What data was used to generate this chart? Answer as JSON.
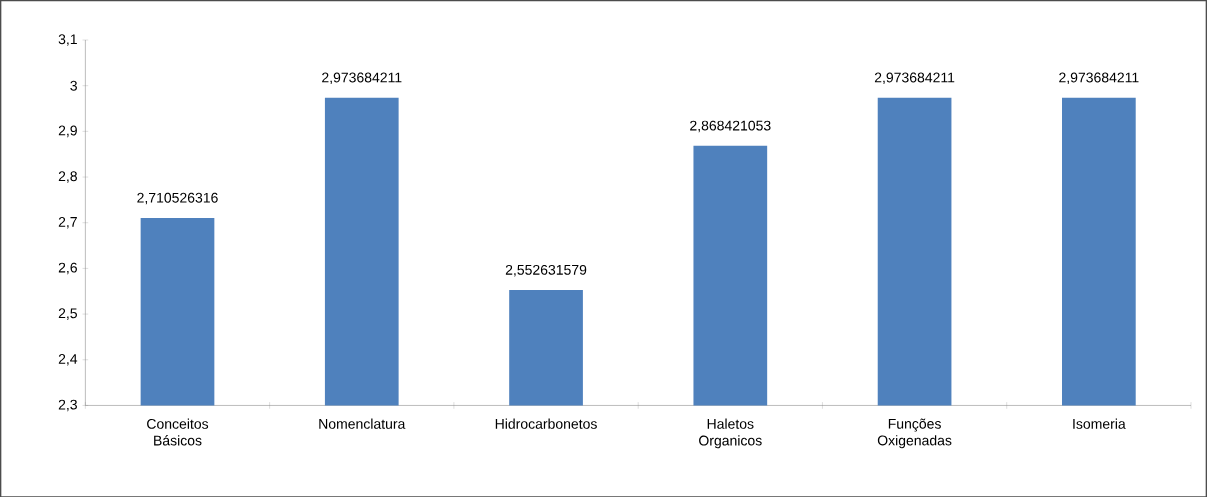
{
  "chart_data": {
    "type": "bar",
    "categories": [
      "Conceitos Básicos",
      "Nomenclatura",
      "Hidrocarbonetos",
      "Haletos Organicos",
      "Funções Oxigenadas",
      "Isomeria"
    ],
    "values": [
      2.710526316,
      2.973684211,
      2.552631579,
      2.868421053,
      2.973684211,
      2.973684211
    ],
    "value_labels": [
      "2,710526316",
      "2,973684211",
      "2,552631579",
      "2,868421053",
      "2,973684211",
      "2,973684211"
    ],
    "color": "#4f81bd",
    "ylim": [
      2.3,
      3.1
    ],
    "yticks": [
      {
        "value": 2.3,
        "label": "2,3"
      },
      {
        "value": 2.4,
        "label": "2,4"
      },
      {
        "value": 2.5,
        "label": "2,5"
      },
      {
        "value": 2.6,
        "label": "2,6"
      },
      {
        "value": 2.7,
        "label": "2,7"
      },
      {
        "value": 2.8,
        "label": "2,8"
      },
      {
        "value": 2.9,
        "label": "2,9"
      },
      {
        "value": 3,
        "label": "3"
      },
      {
        "value": 3.1,
        "label": "3,1"
      }
    ]
  }
}
